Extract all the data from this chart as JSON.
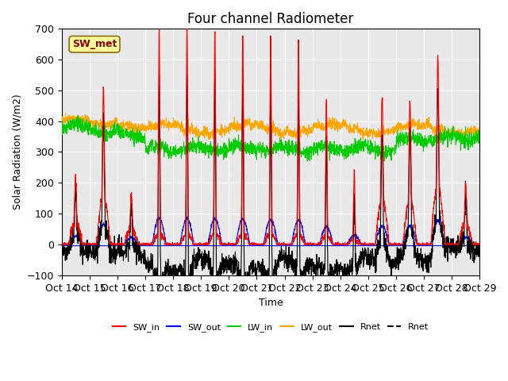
{
  "title": "Four channel Radiometer",
  "ylabel": "Solar Radiation (W/m2)",
  "xlabel": "Time",
  "ylim": [
    -100,
    700
  ],
  "xtick_labels": [
    "Oct 14",
    "Oct 15",
    "Oct 16",
    "Oct 17",
    "Oct 18",
    "Oct 19",
    "Oct 20",
    "Oct 21",
    "Oct 22",
    "Oct 23",
    "Oct 24",
    "Oct 25",
    "Oct 26",
    "Oct 27",
    "Oct 28",
    "Oct 29"
  ],
  "annotation_text": "SW_met",
  "annotation_color": "#8B0000",
  "annotation_bg": "#FFFF99",
  "bg_color": "#E8E8E8",
  "colors": {
    "SW_in": "#FF0000",
    "SW_out": "#0000FF",
    "LW_in": "#00CC00",
    "LW_out": "#FFA500",
    "Rnet1": "#000000",
    "Rnet2": "#000000"
  },
  "legend_labels": [
    "SW_in",
    "SW_out",
    "LW_in",
    "LW_out",
    "Rnet",
    "Rnet"
  ]
}
